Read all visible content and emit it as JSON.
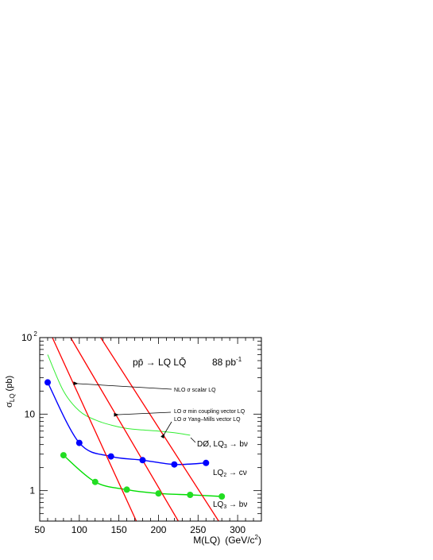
{
  "chart_data": {
    "type": "line",
    "title": "",
    "xlabel_main": "M(LQ)",
    "xlabel_unit_pre": "(GeV/c",
    "xlabel_unit_sup": "2",
    "xlabel_unit_post": ")",
    "ylabel_sigma": "σ",
    "ylabel_sub": "LQ",
    "ylabel_unit": "(pb)",
    "xlim": [
      50,
      330
    ],
    "ylim": [
      0.4,
      100
    ],
    "yscale": "log",
    "grid": false,
    "x_ticks": [
      "50",
      "100",
      "150",
      "200",
      "250",
      "300"
    ],
    "y_ticks": [
      {
        "base": "1",
        "exp": ""
      },
      {
        "base": "10",
        "exp": ""
      },
      {
        "base": "10",
        "exp": "2"
      }
    ],
    "header": {
      "process": "pp̄ → LQ LQ̄",
      "lumi": "88 pb",
      "lumi_exp": "-1"
    },
    "annotations": [
      "NLO σ scalar LQ",
      "LO σ min coupling vector LQ",
      "LO σ Yang–Mills vector LQ"
    ],
    "series_labels": [
      {
        "main": "DØ,  LQ",
        "sub": "3",
        "tail": " → bν"
      },
      {
        "main": "LQ",
        "sub": "2",
        "tail": " → cν"
      },
      {
        "main": "LQ",
        "sub": "3",
        "tail": " → bν"
      }
    ],
    "colors": {
      "theory": "#ff0000",
      "blue": "#0000ff",
      "green": "#00dd00",
      "green_markers": "#22dd22",
      "green_thin": "#33ee33"
    },
    "series": [
      {
        "color": "blue",
        "marker": true,
        "x": [
          60,
          100,
          140,
          180,
          220,
          260
        ],
        "y": [
          26,
          4.2,
          2.8,
          2.5,
          2.2,
          2.3
        ]
      },
      {
        "color": "green",
        "marker": true,
        "x": [
          80,
          120,
          160,
          200,
          240,
          280
        ],
        "y": [
          2.9,
          1.3,
          1.03,
          0.92,
          0.88,
          0.84
        ]
      },
      {
        "color": "green_thin",
        "marker": false,
        "x": [
          60,
          80,
          100,
          120,
          140,
          160,
          180,
          200,
          220,
          240
        ],
        "y": [
          60,
          20,
          11,
          8.4,
          7.2,
          6.5,
          6.2,
          6.0,
          5.7,
          5.3
        ]
      },
      {
        "color": "theory",
        "marker": false,
        "x": [
          66,
          172
        ],
        "y": [
          100,
          0.4
        ]
      },
      {
        "color": "theory",
        "marker": false,
        "x": [
          89,
          225
        ],
        "y": [
          100,
          0.4
        ]
      },
      {
        "color": "theory",
        "marker": false,
        "x": [
          127,
          276
        ],
        "y": [
          100,
          0.4
        ]
      }
    ]
  }
}
